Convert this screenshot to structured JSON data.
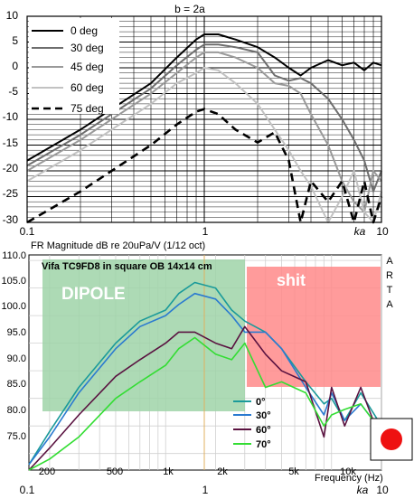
{
  "top_chart": {
    "title": "b = 2a",
    "y_ticks": [
      "10",
      "5",
      "0",
      "-5",
      "-10",
      "-15",
      "-20",
      "-25",
      "-30"
    ],
    "x_tick_labels": {
      "left": "0.1",
      "mid": "1",
      "right": "10"
    },
    "x_unit": "ka",
    "legend": [
      {
        "label": "0 deg",
        "color": "#000000",
        "dash": false
      },
      {
        "label": "30 deg",
        "color": "#6e6e6e",
        "dash": false
      },
      {
        "label": "45 deg",
        "color": "#9a9a9a",
        "dash": false
      },
      {
        "label": "60 deg",
        "color": "#c2c2c2",
        "dash": false
      },
      {
        "label": "75 deg",
        "color": "#000000",
        "dash": true
      }
    ]
  },
  "bottom_chart": {
    "header": "FR Magnitude dB re 20uPa/V (1/12 oct)",
    "arta": [
      "A",
      "R",
      "T",
      "A"
    ],
    "inner_title": "Vifa TC9FD8 in square OB 14x14 cm",
    "region_left_label": "DIPOLE",
    "region_right_label": "shit",
    "y_ticks": [
      "110.0",
      "105.0",
      "100.0",
      "95.0",
      "90.0",
      "85.0",
      "80.0",
      "75.0"
    ],
    "x_ticks": [
      "200",
      "500",
      "1k",
      "2k",
      "5k",
      "10k"
    ],
    "x_label": "Frequency (Hz)",
    "legend": [
      {
        "label": "0°",
        "color": "#1a9a9a"
      },
      {
        "label": "30°",
        "color": "#2a7ad0"
      },
      {
        "label": "60°",
        "color": "#5a1240"
      },
      {
        "label": "70°",
        "color": "#33dd33"
      }
    ],
    "bottom_axis": {
      "left": "0.1",
      "mid": "1",
      "right": "10",
      "unit": "ka"
    },
    "colors": {
      "dipole_region": "#9fd4a8",
      "bad_region": "#ff8a8a",
      "marker": "#ee1111",
      "center_line": "#e0b060"
    }
  },
  "chart_data": [
    {
      "type": "line",
      "title": "b = 2a",
      "xlabel": "ka",
      "ylabel": "",
      "x_scale": "log",
      "xlim": [
        0.1,
        10
      ],
      "ylim": [
        -30,
        10
      ],
      "grid": true,
      "legend_position": "top-left",
      "series": [
        {
          "name": "0 deg",
          "x": [
            0.1,
            0.2,
            0.3,
            0.5,
            0.7,
            0.9,
            1.0,
            1.2,
            1.5,
            2.0,
            2.5,
            3.0,
            3.5,
            4.0,
            5.0,
            6.0,
            7.0,
            8.0,
            9.0,
            10.0
          ],
          "y": [
            -18,
            -12,
            -8,
            -3,
            2,
            5.5,
            6.5,
            6.5,
            5.5,
            4,
            2,
            0,
            -1.5,
            0,
            1.5,
            0.5,
            1,
            -0.5,
            1,
            0.5
          ]
        },
        {
          "name": "30 deg",
          "x": [
            0.1,
            0.2,
            0.3,
            0.5,
            0.7,
            0.9,
            1.0,
            1.2,
            1.5,
            2.0,
            2.5,
            3.0,
            3.5,
            4.0,
            5.0,
            6.0,
            7.0,
            8.0,
            9.0,
            10.0
          ],
          "y": [
            -19,
            -13,
            -9,
            -4,
            0.5,
            3.5,
            4.5,
            4.5,
            4,
            3,
            -1.5,
            -2.5,
            -2,
            -3,
            -6,
            -10,
            -14,
            -18,
            -24,
            -20
          ]
        },
        {
          "name": "45 deg",
          "x": [
            0.1,
            0.2,
            0.3,
            0.5,
            0.7,
            0.9,
            1.0,
            1.2,
            1.5,
            2.0,
            2.5,
            3.0,
            3.5,
            4.0,
            5.0,
            6.0,
            7.0,
            8.0,
            9.0,
            10.0
          ],
          "y": [
            -20,
            -14,
            -10,
            -5,
            -1,
            2,
            3,
            3,
            2,
            0,
            -3,
            -3.5,
            -5,
            -9,
            -15,
            -22,
            -26,
            -28,
            -20,
            -22
          ]
        },
        {
          "name": "60 deg",
          "x": [
            0.1,
            0.2,
            0.3,
            0.5,
            0.7,
            0.9,
            1.0,
            1.2,
            1.5,
            2.0,
            2.5,
            3.0,
            3.5,
            4.0,
            5.0,
            6.0,
            7.0,
            8.0,
            9.0,
            10.0
          ],
          "y": [
            -22,
            -16,
            -12,
            -7,
            -3,
            -1,
            0,
            -0.5,
            -3,
            -7,
            -12,
            -16,
            -20,
            -23,
            -30,
            -25,
            -20,
            -28,
            -30,
            -24
          ]
        },
        {
          "name": "75 deg",
          "x": [
            0.1,
            0.2,
            0.3,
            0.5,
            0.7,
            0.9,
            1.0,
            1.2,
            1.5,
            2.0,
            2.5,
            3.0,
            3.5,
            4.0,
            5.0,
            6.0,
            7.0,
            8.0,
            9.0,
            10.0
          ],
          "y": [
            -30,
            -24,
            -20,
            -15,
            -11,
            -8.5,
            -8,
            -9,
            -12,
            -14.5,
            -12.5,
            -18,
            -30,
            -22,
            -26,
            -22,
            -30,
            -22,
            -30,
            -25
          ]
        }
      ]
    },
    {
      "type": "line",
      "title": "Vifa TC9FD8 in square OB 14x14 cm",
      "xlabel": "Frequency (Hz)",
      "ylabel": "FR Magnitude dB re 20uPa/V (1/12 oct)",
      "x_scale": "log",
      "xlim": [
        150,
        20000
      ],
      "ylim": [
        72,
        111
      ],
      "grid": true,
      "legend_position": "bottom-right",
      "series": [
        {
          "name": "0°",
          "x": [
            150,
            200,
            300,
            500,
            700,
            1000,
            1200,
            1500,
            2000,
            2500,
            3000,
            4000,
            5000,
            7000,
            9000,
            10000,
            12000,
            15000,
            20000
          ],
          "y": [
            73,
            79,
            87,
            95,
            99,
            101,
            104,
            106,
            105,
            101,
            99,
            97,
            94,
            88,
            84,
            85,
            81,
            86,
            80
          ]
        },
        {
          "name": "30°",
          "x": [
            150,
            200,
            300,
            500,
            700,
            1000,
            1200,
            1500,
            2000,
            2500,
            3000,
            4000,
            5000,
            7000,
            9000,
            10000,
            12000,
            15000,
            20000
          ],
          "y": [
            73,
            78,
            86,
            94,
            98,
            100,
            102,
            104,
            103,
            100,
            97,
            97,
            94,
            87,
            82,
            86,
            81,
            84,
            79
          ]
        },
        {
          "name": "60°",
          "x": [
            150,
            200,
            300,
            500,
            700,
            1000,
            1200,
            1500,
            2000,
            2500,
            3000,
            4000,
            5000,
            7000,
            9000,
            10000,
            12000,
            15000,
            20000
          ],
          "y": [
            72,
            76,
            82,
            89,
            92,
            95,
            97,
            97,
            95,
            94,
            98,
            93,
            90,
            88,
            78,
            87,
            80,
            87,
            77
          ]
        },
        {
          "name": "70°",
          "x": [
            150,
            200,
            300,
            500,
            700,
            1000,
            1200,
            1500,
            2000,
            2500,
            3000,
            4000,
            5000,
            7000,
            9000,
            10000,
            12000,
            15000,
            20000
          ],
          "y": [
            70,
            74,
            78,
            85,
            88,
            91,
            94,
            96,
            93,
            92,
            95,
            87,
            88,
            86,
            80,
            82,
            83,
            84,
            79
          ]
        }
      ]
    }
  ]
}
